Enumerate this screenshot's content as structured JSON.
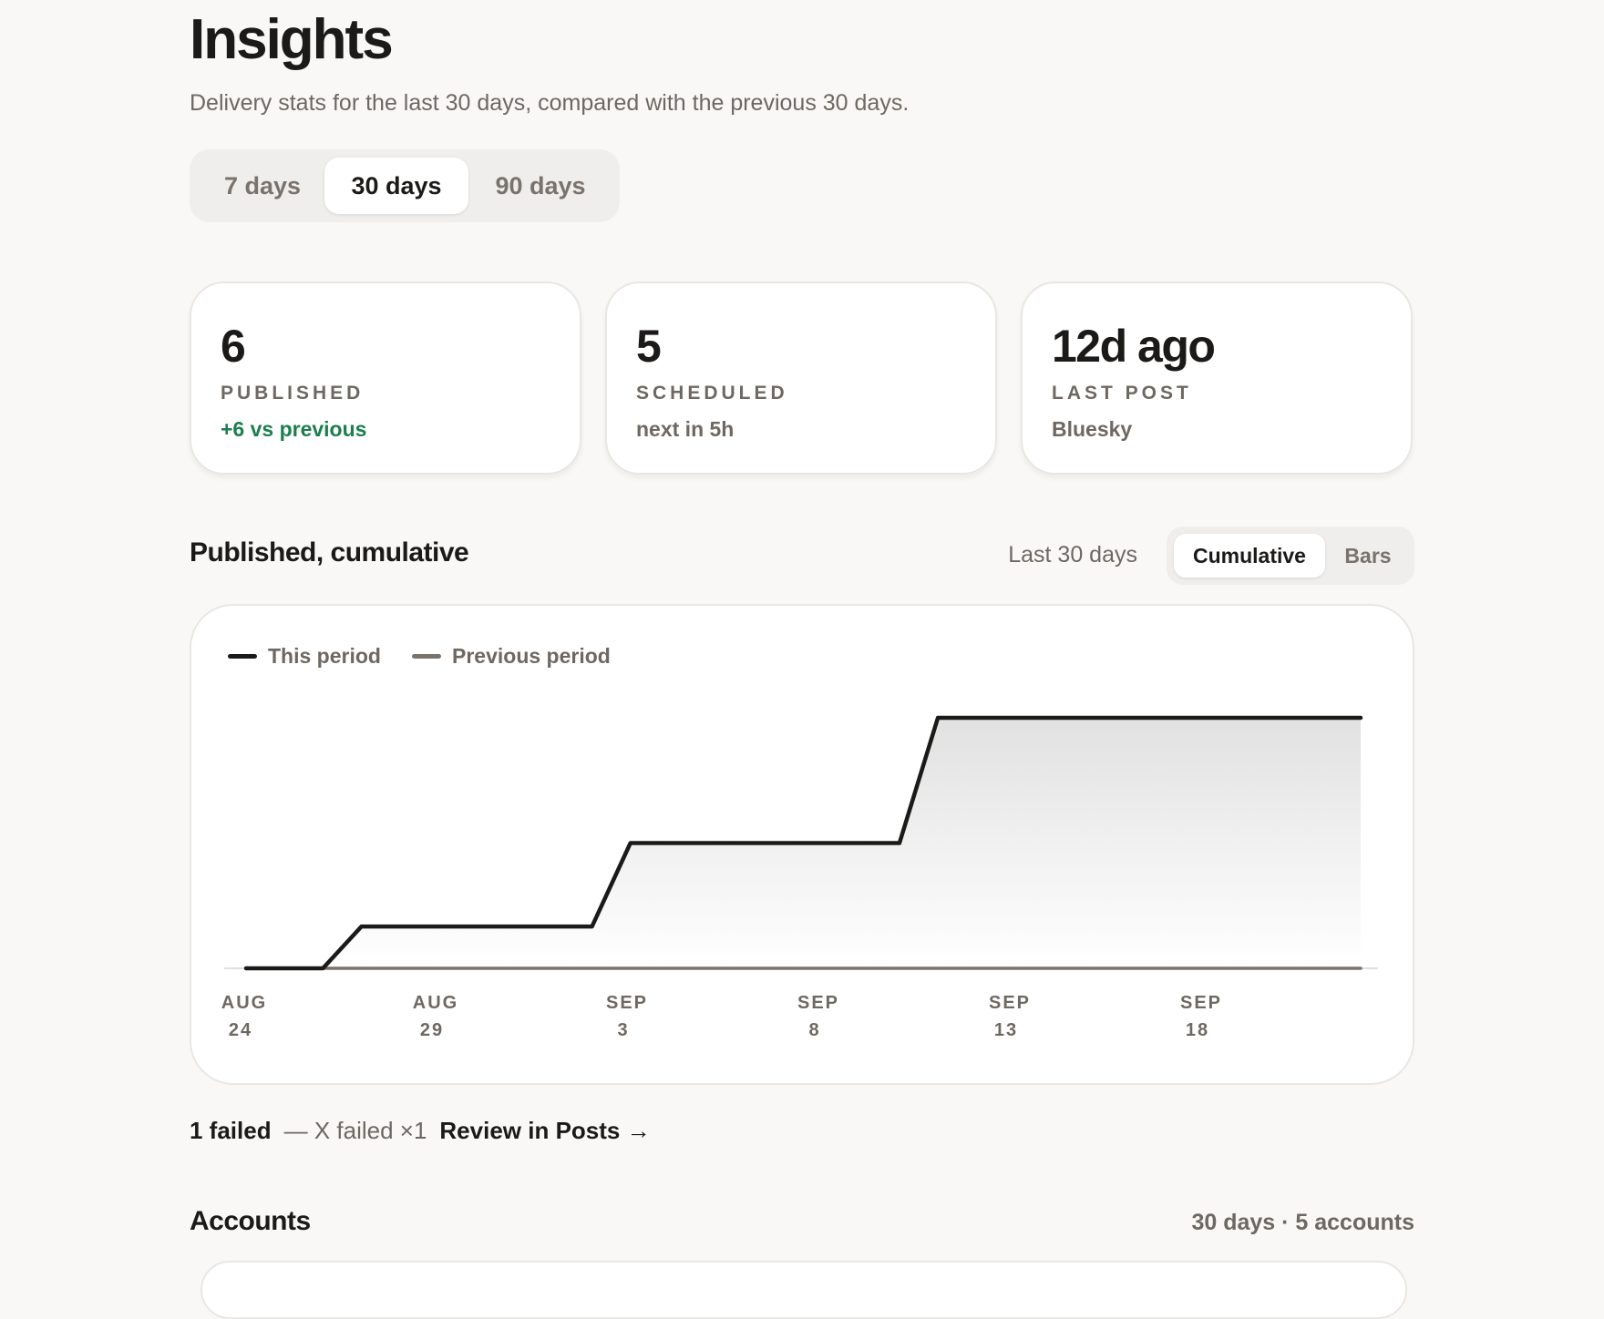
{
  "header": {
    "title": "Insights",
    "subtitle": "Delivery stats for the last 30 days, compared with the previous 30 days."
  },
  "range_tabs": {
    "options": [
      "7 days",
      "30 days",
      "90 days"
    ],
    "selected": "30 days"
  },
  "stats": [
    {
      "value": "6",
      "label": "PUBLISHED",
      "sub": "+6 vs previous",
      "sub_color": "#1a7f4d"
    },
    {
      "value": "5",
      "label": "SCHEDULED",
      "sub": "next in 5h"
    },
    {
      "value": "12d ago",
      "label": "LAST POST",
      "sub": "Bluesky"
    }
  ],
  "chart_section": {
    "title": "Published, cumulative",
    "range_label": "Last 30 days",
    "view_options": [
      "Cumulative",
      "Bars"
    ],
    "selected_view": "Cumulative"
  },
  "chart_data": {
    "type": "line",
    "title": "",
    "xlabel": "",
    "ylabel": "",
    "x": [
      "Aug 24",
      "Aug 25",
      "Aug 26",
      "Aug 27",
      "Aug 28",
      "Aug 29",
      "Aug 30",
      "Aug 31",
      "Sep 1",
      "Sep 2",
      "Sep 3",
      "Sep 4",
      "Sep 5",
      "Sep 6",
      "Sep 7",
      "Sep 8",
      "Sep 9",
      "Sep 10",
      "Sep 11",
      "Sep 12",
      "Sep 13",
      "Sep 14",
      "Sep 15",
      "Sep 16",
      "Sep 17",
      "Sep 18",
      "Sep 19",
      "Sep 20",
      "Sep 21",
      "Sep 22"
    ],
    "x_ticks": [
      {
        "month": "AUG",
        "day": "24"
      },
      {
        "month": "AUG",
        "day": "29"
      },
      {
        "month": "SEP",
        "day": "3"
      },
      {
        "month": "SEP",
        "day": "8"
      },
      {
        "month": "SEP",
        "day": "13"
      },
      {
        "month": "SEP",
        "day": "18"
      }
    ],
    "series": [
      {
        "name": "This period",
        "color": "#1c1a18",
        "values": [
          0,
          0,
          0,
          1,
          1,
          1,
          1,
          1,
          1,
          1,
          3,
          3,
          3,
          3,
          3,
          3,
          3,
          3,
          6,
          6,
          6,
          6,
          6,
          6,
          6,
          6,
          6,
          6,
          6,
          6
        ]
      },
      {
        "name": "Previous period",
        "color": "#7a736d",
        "values": [
          0,
          0,
          0,
          0,
          0,
          0,
          0,
          0,
          0,
          0,
          0,
          0,
          0,
          0,
          0,
          0,
          0,
          0,
          0,
          0,
          0,
          0,
          0,
          0,
          0,
          0,
          0,
          0,
          0,
          0
        ]
      }
    ],
    "ylim": [
      0,
      6
    ],
    "grid": false,
    "legend": "top-left"
  },
  "failed": {
    "count_label": "1 failed",
    "detail": "— X failed ×1",
    "link_label": "Review in Posts →"
  },
  "accounts": {
    "title": "Accounts",
    "meta": "30 days · 5 accounts"
  }
}
